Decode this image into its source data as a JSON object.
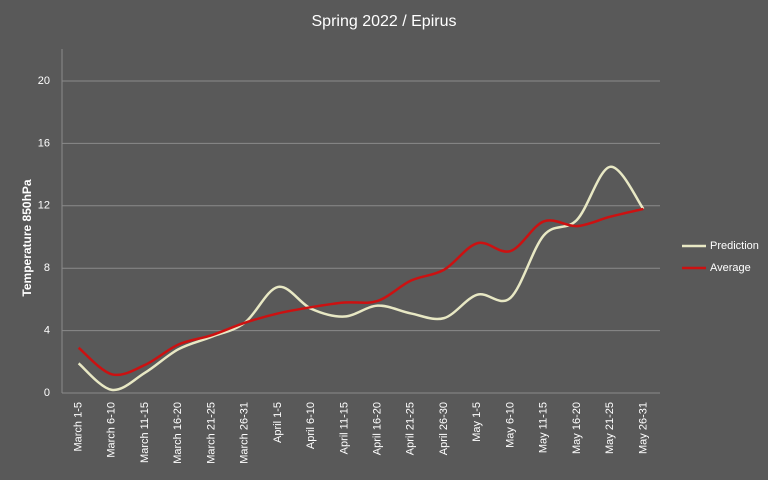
{
  "chart_data": {
    "type": "line",
    "title": "Spring 2022 / Epirus",
    "y_label": "Temperature 850hPa",
    "categories": [
      "March 1-5",
      "March 6-10",
      "March 11-15",
      "March 16-20",
      "March 21-25",
      "March 26-31",
      "April 1-5",
      "April 6-10",
      "April 11-15",
      "April 16-20",
      "April 21-25",
      "April 26-30",
      "May 1-5",
      "May 6-10",
      "May 11-15",
      "May 16-20",
      "May 21-25",
      "May 26-31"
    ],
    "series": [
      {
        "name": "Prediction",
        "color": "#e8e8c4",
        "values": [
          1.9,
          0.2,
          1.3,
          2.8,
          3.6,
          4.5,
          6.8,
          5.4,
          4.9,
          5.6,
          5.1,
          4.8,
          6.3,
          6.1,
          10.1,
          11.1,
          14.5,
          11.8
        ]
      },
      {
        "name": "Average",
        "color": "#cc1111",
        "values": [
          2.9,
          1.2,
          1.8,
          3.1,
          3.7,
          4.5,
          5.1,
          5.5,
          5.8,
          5.9,
          7.2,
          7.9,
          9.6,
          9.1,
          11.0,
          10.7,
          11.3,
          11.8
        ]
      }
    ],
    "ylim": [
      0,
      20
    ],
    "yticks": [
      0,
      4,
      8,
      12,
      16,
      20
    ],
    "grid": true,
    "smooth": true,
    "legend": "right"
  }
}
